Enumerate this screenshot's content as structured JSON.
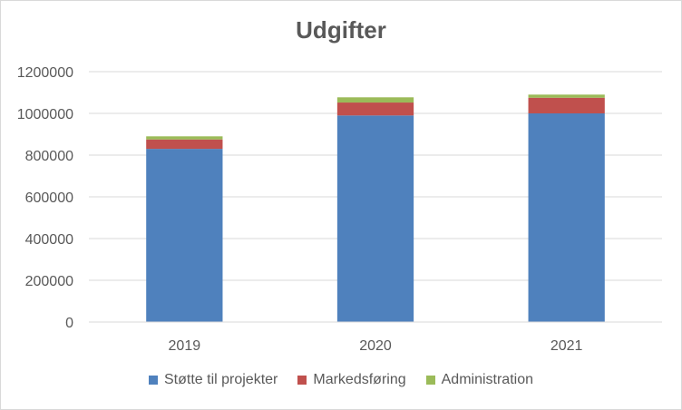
{
  "chart_data": {
    "type": "bar",
    "stacked": true,
    "title": "Udgifter",
    "xlabel": "",
    "ylabel": "",
    "categories": [
      "2019",
      "2020",
      "2021"
    ],
    "ylim": [
      0,
      1200000
    ],
    "yticks": [
      "0",
      "200000",
      "400000",
      "600000",
      "800000",
      "1000000",
      "1200000"
    ],
    "grid": true,
    "legend_position": "bottom",
    "series": [
      {
        "name": "Støtte til  projekter",
        "color": "#4f81bd",
        "values": [
          830000,
          990000,
          1000000
        ]
      },
      {
        "name": "Markedsføring",
        "color": "#c0504d",
        "values": [
          45000,
          62000,
          75000
        ]
      },
      {
        "name": "Administration",
        "color": "#9bbb59",
        "values": [
          15000,
          25000,
          15000
        ]
      }
    ]
  }
}
